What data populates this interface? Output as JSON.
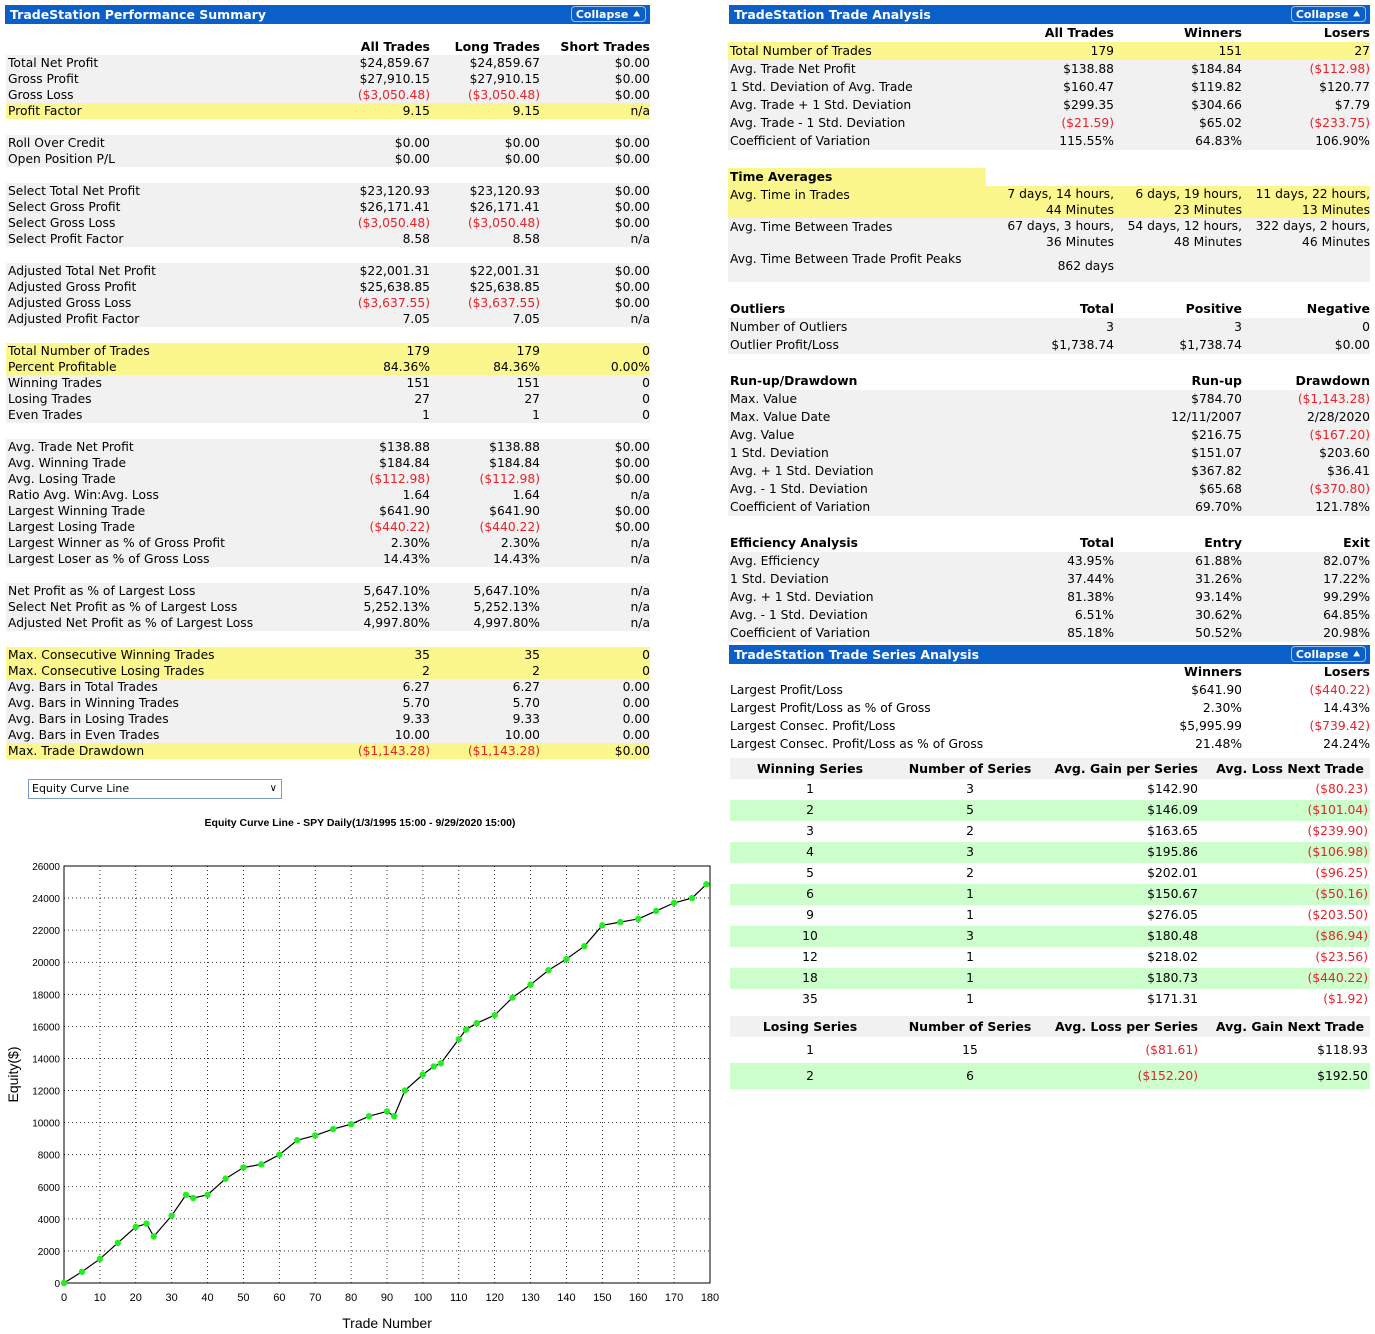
{
  "perf": {
    "title": "TradeStation Performance Summary",
    "collapse": "Collapse",
    "columns": [
      "All Trades",
      "Long Trades",
      "Short Trades"
    ],
    "rows": [
      {
        "label": "Total Net Profit",
        "v": [
          "$24,859.67",
          "$24,859.67",
          "$0.00"
        ],
        "style": "gray"
      },
      {
        "label": "Gross Profit",
        "v": [
          "$27,910.15",
          "$27,910.15",
          "$0.00"
        ],
        "style": "gray"
      },
      {
        "label": "Gross Loss",
        "v": [
          "($3,050.48)",
          "($3,050.48)",
          "$0.00"
        ],
        "style": "gray"
      },
      {
        "label": "Profit Factor",
        "v": [
          "9.15",
          "9.15",
          "n/a"
        ],
        "style": "yel"
      },
      {
        "spacer": true
      },
      {
        "label": "Roll Over Credit",
        "v": [
          "$0.00",
          "$0.00",
          "$0.00"
        ],
        "style": "gray"
      },
      {
        "label": "Open Position P/L",
        "v": [
          "$0.00",
          "$0.00",
          "$0.00"
        ],
        "style": "gray"
      },
      {
        "spacer": true
      },
      {
        "label": "Select Total Net Profit",
        "v": [
          "$23,120.93",
          "$23,120.93",
          "$0.00"
        ],
        "style": "gray"
      },
      {
        "label": "Select Gross Profit",
        "v": [
          "$26,171.41",
          "$26,171.41",
          "$0.00"
        ],
        "style": "gray"
      },
      {
        "label": "Select Gross Loss",
        "v": [
          "($3,050.48)",
          "($3,050.48)",
          "$0.00"
        ],
        "style": "gray"
      },
      {
        "label": "Select Profit Factor",
        "v": [
          "8.58",
          "8.58",
          "n/a"
        ],
        "style": "gray"
      },
      {
        "spacer": true
      },
      {
        "label": "Adjusted Total Net Profit",
        "v": [
          "$22,001.31",
          "$22,001.31",
          "$0.00"
        ],
        "style": "gray"
      },
      {
        "label": "Adjusted Gross Profit",
        "v": [
          "$25,638.85",
          "$25,638.85",
          "$0.00"
        ],
        "style": "gray"
      },
      {
        "label": "Adjusted Gross Loss",
        "v": [
          "($3,637.55)",
          "($3,637.55)",
          "$0.00"
        ],
        "style": "gray"
      },
      {
        "label": "Adjusted Profit Factor",
        "v": [
          "7.05",
          "7.05",
          "n/a"
        ],
        "style": "gray"
      },
      {
        "spacer": true
      },
      {
        "label": "Total Number of Trades",
        "v": [
          "179",
          "179",
          "0"
        ],
        "style": "yel"
      },
      {
        "label": "Percent Profitable",
        "v": [
          "84.36%",
          "84.36%",
          "0.00%"
        ],
        "style": "yel"
      },
      {
        "label": "Winning Trades",
        "v": [
          "151",
          "151",
          "0"
        ],
        "style": "gray"
      },
      {
        "label": "Losing Trades",
        "v": [
          "27",
          "27",
          "0"
        ],
        "style": "gray"
      },
      {
        "label": "Even Trades",
        "v": [
          "1",
          "1",
          "0"
        ],
        "style": "gray"
      },
      {
        "spacer": true
      },
      {
        "label": "Avg. Trade Net Profit",
        "v": [
          "$138.88",
          "$138.88",
          "$0.00"
        ],
        "style": "gray"
      },
      {
        "label": "Avg. Winning Trade",
        "v": [
          "$184.84",
          "$184.84",
          "$0.00"
        ],
        "style": "gray"
      },
      {
        "label": "Avg. Losing Trade",
        "v": [
          "($112.98)",
          "($112.98)",
          "$0.00"
        ],
        "style": "gray"
      },
      {
        "label": "Ratio Avg. Win:Avg. Loss",
        "v": [
          "1.64",
          "1.64",
          "n/a"
        ],
        "style": "gray"
      },
      {
        "label": "Largest Winning Trade",
        "v": [
          "$641.90",
          "$641.90",
          "$0.00"
        ],
        "style": "gray"
      },
      {
        "label": "Largest Losing Trade",
        "v": [
          "($440.22)",
          "($440.22)",
          "$0.00"
        ],
        "style": "gray"
      },
      {
        "label": "Largest Winner as % of Gross Profit",
        "v": [
          "2.30%",
          "2.30%",
          "n/a"
        ],
        "style": "gray"
      },
      {
        "label": "Largest Loser as % of Gross Loss",
        "v": [
          "14.43%",
          "14.43%",
          "n/a"
        ],
        "style": "gray"
      },
      {
        "spacer": true
      },
      {
        "label": "Net Profit as % of Largest Loss",
        "v": [
          "5,647.10%",
          "5,647.10%",
          "n/a"
        ],
        "style": "gray"
      },
      {
        "label": "Select Net Profit as % of Largest Loss",
        "v": [
          "5,252.13%",
          "5,252.13%",
          "n/a"
        ],
        "style": "gray"
      },
      {
        "label": "Adjusted Net Profit as % of Largest Loss",
        "v": [
          "4,997.80%",
          "4,997.80%",
          "n/a"
        ],
        "style": "gray"
      },
      {
        "spacer": true
      },
      {
        "label": "Max. Consecutive Winning Trades",
        "v": [
          "35",
          "35",
          "0"
        ],
        "style": "yel"
      },
      {
        "label": "Max. Consecutive Losing Trades",
        "v": [
          "2",
          "2",
          "0"
        ],
        "style": "yel"
      },
      {
        "label": "Avg. Bars in Total Trades",
        "v": [
          "6.27",
          "6.27",
          "0.00"
        ],
        "style": "gray"
      },
      {
        "label": "Avg. Bars in Winning Trades",
        "v": [
          "5.70",
          "5.70",
          "0.00"
        ],
        "style": "gray"
      },
      {
        "label": "Avg. Bars in Losing Trades",
        "v": [
          "9.33",
          "9.33",
          "0.00"
        ],
        "style": "gray"
      },
      {
        "label": "Avg. Bars in Even Trades",
        "v": [
          "10.00",
          "10.00",
          "0.00"
        ],
        "style": "gray"
      },
      {
        "label": "Max. Trade Drawdown",
        "v": [
          "($1,143.28)",
          "($1,143.28)",
          "$0.00"
        ],
        "style": "yel"
      }
    ]
  },
  "trade_analysis": {
    "title": "TradeStation Trade Analysis",
    "collapse": "Collapse",
    "columns": [
      "All Trades",
      "Winners",
      "Losers"
    ],
    "rows": [
      {
        "label": "Total Number of Trades",
        "v": [
          "179",
          "151",
          "27"
        ],
        "style": "yel"
      },
      {
        "label": "Avg. Trade Net Profit",
        "v": [
          "$138.88",
          "$184.84",
          "($112.98)"
        ],
        "style": "gray"
      },
      {
        "label": "1 Std. Deviation of Avg. Trade",
        "v": [
          "$160.47",
          "$119.82",
          "$120.77"
        ],
        "style": "gray"
      },
      {
        "label": "Avg. Trade + 1 Std. Deviation",
        "v": [
          "$299.35",
          "$304.66",
          "$7.79"
        ],
        "style": "gray"
      },
      {
        "label": "Avg. Trade - 1 Std. Deviation",
        "v": [
          "($21.59)",
          "$65.02",
          "($233.75)"
        ],
        "style": "gray"
      },
      {
        "label": "Coefficient of Variation",
        "v": [
          "115.55%",
          "64.83%",
          "106.90%"
        ],
        "style": "gray"
      }
    ],
    "time_averages": {
      "heading": "Time Averages",
      "rows": [
        {
          "label": "Avg. Time in Trades",
          "l1": [
            "7 days, 14 hours,",
            "6 days, 19 hours,",
            "11 days, 22 hours,"
          ],
          "l2": [
            "44 Minutes",
            "23 Minutes",
            "13 Minutes"
          ],
          "style": "yel"
        },
        {
          "label": "Avg. Time Between Trades",
          "l1": [
            "67 days, 3 hours,",
            "54 days, 12 hours,",
            "322 days, 2 hours,"
          ],
          "l2": [
            "36 Minutes",
            "48 Minutes",
            "46 Minutes"
          ],
          "style": "gray"
        },
        {
          "label": "Avg. Time Between Trade Profit Peaks",
          "l1": [
            "862 days",
            "",
            ""
          ],
          "l2": [
            "",
            "",
            ""
          ],
          "style": "gray"
        }
      ]
    },
    "outliers": {
      "heading": "Outliers",
      "columns": [
        "Total",
        "Positive",
        "Negative"
      ],
      "rows": [
        {
          "label": "Number of Outliers",
          "v": [
            "3",
            "3",
            "0"
          ]
        },
        {
          "label": "Outlier Profit/Loss",
          "v": [
            "$1,738.74",
            "$1,738.74",
            "$0.00"
          ]
        }
      ]
    },
    "runup": {
      "heading": "Run-up/Drawdown",
      "columns": [
        "",
        "Run-up",
        "Drawdown"
      ],
      "rows": [
        {
          "label": "Max. Value",
          "v": [
            "",
            "$784.70",
            "($1,143.28)"
          ]
        },
        {
          "label": "Max. Value Date",
          "v": [
            "",
            "12/11/2007",
            "2/28/2020"
          ]
        },
        {
          "label": "Avg. Value",
          "v": [
            "",
            "$216.75",
            "($167.20)"
          ]
        },
        {
          "label": "1 Std. Deviation",
          "v": [
            "",
            "$151.07",
            "$203.60"
          ]
        },
        {
          "label": "Avg. + 1 Std. Deviation",
          "v": [
            "",
            "$367.82",
            "$36.41"
          ]
        },
        {
          "label": "Avg. - 1 Std. Deviation",
          "v": [
            "",
            "$65.68",
            "($370.80)"
          ]
        },
        {
          "label": "Coefficient of Variation",
          "v": [
            "",
            "69.70%",
            "121.78%"
          ]
        }
      ]
    },
    "efficiency": {
      "heading": "Efficiency Analysis",
      "columns": [
        "Total",
        "Entry",
        "Exit"
      ],
      "rows": [
        {
          "label": "Avg. Efficiency",
          "v": [
            "43.95%",
            "61.88%",
            "82.07%"
          ]
        },
        {
          "label": "1 Std. Deviation",
          "v": [
            "37.44%",
            "31.26%",
            "17.22%"
          ]
        },
        {
          "label": "Avg. + 1 Std. Deviation",
          "v": [
            "81.38%",
            "93.14%",
            "99.29%"
          ]
        },
        {
          "label": "Avg. - 1 Std. Deviation",
          "v": [
            "6.51%",
            "30.62%",
            "64.85%"
          ]
        },
        {
          "label": "Coefficient of Variation",
          "v": [
            "85.18%",
            "50.52%",
            "20.98%"
          ]
        }
      ]
    }
  },
  "series": {
    "title": "TradeStation Trade Series Analysis",
    "collapse": "Collapse",
    "columns": [
      "Winners",
      "Losers"
    ],
    "rows": [
      {
        "label": "Largest Profit/Loss",
        "v": [
          "$641.90",
          "($440.22)"
        ]
      },
      {
        "label": "Largest Profit/Loss as % of Gross",
        "v": [
          "2.30%",
          "14.43%"
        ]
      },
      {
        "label": "Largest Consec. Profit/Loss",
        "v": [
          "$5,995.99",
          "($739.42)"
        ]
      },
      {
        "label": "Largest Consec. Profit/Loss as % of Gross",
        "v": [
          "21.48%",
          "24.24%"
        ]
      }
    ],
    "winning_header": [
      "Winning Series",
      "Number of Series",
      "Avg. Gain per Series",
      "Avg. Loss Next Trade"
    ],
    "winning": [
      [
        "1",
        "3",
        "$142.90",
        "($80.23)"
      ],
      [
        "2",
        "5",
        "$146.09",
        "($101.04)"
      ],
      [
        "3",
        "2",
        "$163.65",
        "($239.90)"
      ],
      [
        "4",
        "3",
        "$195.86",
        "($106.98)"
      ],
      [
        "5",
        "2",
        "$202.01",
        "($96.25)"
      ],
      [
        "6",
        "1",
        "$150.67",
        "($50.16)"
      ],
      [
        "9",
        "1",
        "$276.05",
        "($203.50)"
      ],
      [
        "10",
        "3",
        "$180.48",
        "($86.94)"
      ],
      [
        "12",
        "1",
        "$218.02",
        "($23.56)"
      ],
      [
        "18",
        "1",
        "$180.73",
        "($440.22)"
      ],
      [
        "35",
        "1",
        "$171.31",
        "($1.92)"
      ]
    ],
    "losing_header": [
      "Losing Series",
      "Number of Series",
      "Avg. Loss per Series",
      "Avg. Gain Next Trade"
    ],
    "losing": [
      [
        "1",
        "15",
        "($81.61)",
        "$118.93"
      ],
      [
        "2",
        "6",
        "($152.20)",
        "$192.50"
      ]
    ]
  },
  "dropdown": {
    "selected": "Equity Curve Line"
  },
  "chart_data": {
    "type": "line",
    "title": "Equity Curve Line - SPY Daily(1/3/1995 15:00 - 9/29/2020 15:00)",
    "xlabel": "Trade Number",
    "ylabel": "Equity($)",
    "xlim": [
      0,
      180
    ],
    "ylim": [
      0,
      26000
    ],
    "xticks": [
      0,
      10,
      20,
      30,
      40,
      50,
      60,
      70,
      80,
      90,
      100,
      110,
      120,
      130,
      140,
      150,
      160,
      170,
      180
    ],
    "yticks": [
      0,
      2000,
      4000,
      6000,
      8000,
      10000,
      12000,
      14000,
      16000,
      18000,
      20000,
      22000,
      24000,
      26000
    ],
    "grid": true,
    "line_color": "#000000",
    "marker_color": "#22ee22",
    "series": [
      {
        "x": [
          0,
          5,
          10,
          15,
          20,
          23,
          25,
          30,
          34,
          36,
          40,
          45,
          50,
          55,
          60,
          65,
          70,
          75,
          80,
          85,
          90,
          92,
          95,
          100,
          103,
          105,
          110,
          112,
          115,
          120,
          125,
          130,
          135,
          140,
          145,
          150,
          155,
          160,
          165,
          170,
          175,
          179
        ],
        "y": [
          0,
          700,
          1500,
          2500,
          3500,
          3700,
          2900,
          4200,
          5500,
          5300,
          5500,
          6500,
          7200,
          7400,
          8000,
          8900,
          9200,
          9600,
          9900,
          10400,
          10700,
          10400,
          12000,
          13000,
          13500,
          13700,
          15200,
          15800,
          16200,
          16700,
          17800,
          18600,
          19500,
          20200,
          21000,
          22300,
          22500,
          22700,
          23200,
          23700,
          24000,
          24860
        ]
      }
    ]
  }
}
